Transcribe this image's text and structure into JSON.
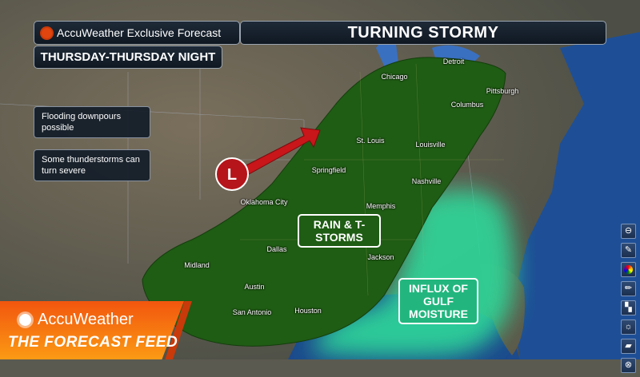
{
  "header": {
    "brand_label": "AccuWeather Exclusive Forecast",
    "title": "TURNING STORMY",
    "timeframe": "THURSDAY-THURSDAY NIGHT"
  },
  "notes": [
    "Flooding downpours possible",
    "Some thunderstorms can turn severe"
  ],
  "map_labels": {
    "low_symbol": "L",
    "rain_area": "RAIN & T-STORMS",
    "moisture_area": "INFLUX OF GULF MOISTURE"
  },
  "cities": [
    "Detroit",
    "Chicago",
    "Pittsburgh",
    "Columbus",
    "St. Louis",
    "Louisville",
    "Springfield",
    "Nashville",
    "Oklahoma City",
    "Memphis",
    "Dallas",
    "Jackson",
    "Midland",
    "Austin",
    "San Antonio",
    "Houston"
  ],
  "logo": {
    "brand": "AccuWeather",
    "show": "THE FORECAST FEED"
  },
  "tools": [
    "minus-circle-icon",
    "highlighter-icon",
    "color-wheel-icon",
    "pen-icon",
    "eraser-spray-icon",
    "brightness-icon",
    "eraser-icon",
    "close-circle-icon"
  ],
  "colors": {
    "rain_area": "#1f5c14",
    "moisture": "#2fd89a",
    "arrow": "#c8161a",
    "low": "#b5151b",
    "logo_orange": "#f26a10"
  }
}
